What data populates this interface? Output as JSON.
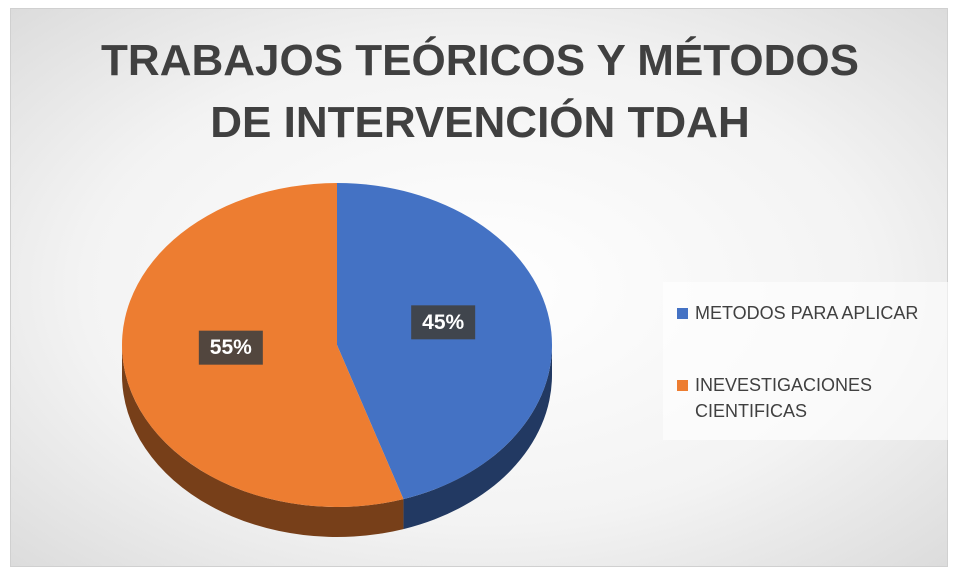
{
  "chart_data": {
    "type": "pie",
    "title": "TRABAJOS TEÓRICOS Y MÉTODOS DE INTERVENCIÓN TDAH",
    "categories": [
      "METODOS PARA APLICAR",
      "INEVESTIGACIONES CIENTIFICAS"
    ],
    "values": [
      45,
      55
    ],
    "value_labels": [
      "45%",
      "55%"
    ],
    "colors": [
      "#4472c4",
      "#ed7d31"
    ],
    "legend": "right"
  }
}
